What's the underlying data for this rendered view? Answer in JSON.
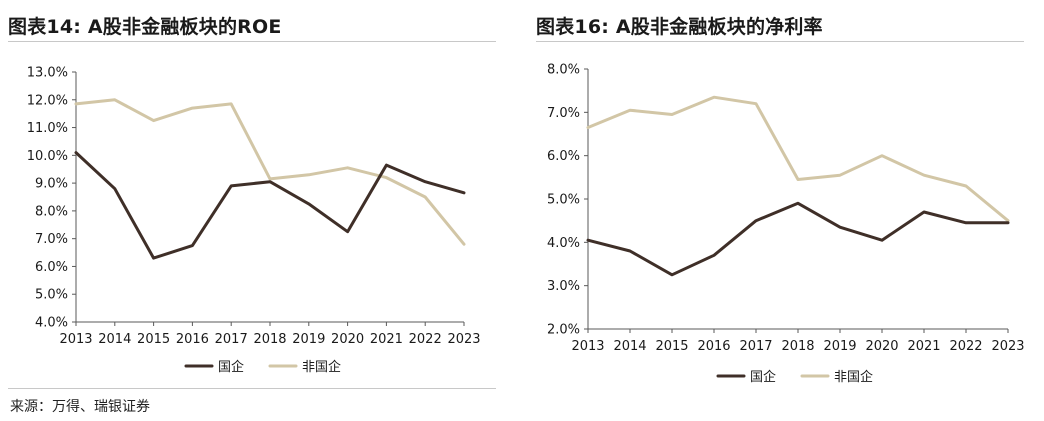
{
  "colors": {
    "soe": "#3f2f28",
    "non_soe": "#d2c6a6",
    "axis": "#595959"
  },
  "source": "来源：万得、瑞银证券",
  "chart_data": [
    {
      "id": "roe",
      "type": "line",
      "title": "图表14: A股非金融板块的ROE",
      "xlabel": "",
      "ylabel": "",
      "categories": [
        "2013",
        "2014",
        "2015",
        "2016",
        "2017",
        "2018",
        "2019",
        "2020",
        "2021",
        "2022",
        "2023"
      ],
      "ylim": [
        4.0,
        13.0
      ],
      "yticks": [
        4.0,
        5.0,
        6.0,
        7.0,
        8.0,
        9.0,
        10.0,
        11.0,
        12.0,
        13.0
      ],
      "ytick_labels": [
        "4.0%",
        "5.0%",
        "6.0%",
        "7.0%",
        "8.0%",
        "9.0%",
        "10.0%",
        "11.0%",
        "12.0%",
        "13.0%"
      ],
      "grid": false,
      "legend_position": "bottom",
      "series": [
        {
          "name": "国企",
          "color_key": "soe",
          "values": [
            10.1,
            8.8,
            6.3,
            6.75,
            8.9,
            9.05,
            8.25,
            7.25,
            9.65,
            9.05,
            8.65
          ]
        },
        {
          "name": "非国企",
          "color_key": "non_soe",
          "values": [
            11.85,
            12.0,
            11.25,
            11.7,
            11.85,
            9.15,
            9.3,
            9.55,
            9.2,
            8.5,
            6.8
          ]
        }
      ]
    },
    {
      "id": "net_margin",
      "type": "line",
      "title": "图表16: A股非金融板块的净利率",
      "xlabel": "",
      "ylabel": "",
      "categories": [
        "2013",
        "2014",
        "2015",
        "2016",
        "2017",
        "2018",
        "2019",
        "2020",
        "2021",
        "2022",
        "2023"
      ],
      "ylim": [
        2.0,
        8.0
      ],
      "yticks": [
        2.0,
        3.0,
        4.0,
        5.0,
        6.0,
        7.0,
        8.0
      ],
      "ytick_labels": [
        "2.0%",
        "3.0%",
        "4.0%",
        "5.0%",
        "6.0%",
        "7.0%",
        "8.0%"
      ],
      "grid": false,
      "legend_position": "bottom",
      "series": [
        {
          "name": "国企",
          "color_key": "soe",
          "values": [
            4.05,
            3.8,
            3.25,
            3.7,
            4.5,
            4.9,
            4.35,
            4.05,
            4.7,
            4.45,
            4.45
          ]
        },
        {
          "name": "非国企",
          "color_key": "non_soe",
          "values": [
            6.65,
            7.05,
            6.95,
            7.35,
            7.2,
            5.45,
            5.55,
            6.0,
            5.55,
            5.3,
            4.5
          ]
        }
      ]
    }
  ]
}
